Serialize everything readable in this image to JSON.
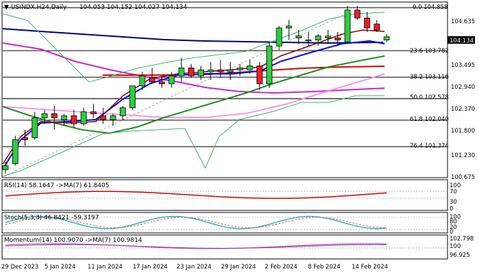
{
  "header": {
    "symbol": "USINDX.H24,Daily",
    "ohlc": "104.053 104.152 104.027 104.134"
  },
  "price_panel": {
    "current_price": "104.134",
    "axis_labels": [
      "104.635",
      "103.495",
      "102.940",
      "102.370",
      "101.800",
      "101.230",
      "100.675"
    ],
    "fib_levels": [
      {
        "label": "0.0 104.858",
        "value": 104.858
      },
      {
        "label": "23.6 103.782",
        "value": 103.782
      },
      {
        "label": "38.2 103.116",
        "value": 103.116
      },
      {
        "label": "50.0 102.578",
        "value": 102.578
      },
      {
        "label": "61.8 102.040",
        "value": 102.04
      },
      {
        "label": "76.4 101.374",
        "value": 101.374
      }
    ]
  },
  "rsi_panel": {
    "title": "RSI(14) 58.1647  ->MA(7) 61.8405",
    "axis_labels": [
      "100",
      "70",
      "30",
      "0"
    ]
  },
  "stoch_panel": {
    "title": "Stoch(5,3,3) 46.8421 -59.3197",
    "axis_labels": [
      "100",
      "80",
      "20",
      "0"
    ]
  },
  "momentum_panel": {
    "title": "Momentum(14) 100.9070  ->MA(7) 100.9814",
    "axis_labels": [
      "102.798",
      "100",
      "96.925"
    ]
  },
  "time_axis": [
    "29 Dec 2023",
    "5 Jan 2024",
    "11 Jan 2024",
    "17 Jan 2024",
    "23 Jan 2024",
    "29 Jan 2024",
    "2 Feb 2024",
    "8 Feb 2024",
    "14 Feb 2024"
  ],
  "colors": {
    "bull": "#2ecc40",
    "bear": "#e8202a",
    "blue_ma": "#0000ff",
    "darkred_ma": "#8b0000",
    "green_ma": "#228b22",
    "red_ma": "#dd0000",
    "magenta_ma": "#cc22cc",
    "pink_ma": "#ff88ee",
    "navy_ma": "#000080",
    "bollinger": "#3cb371",
    "rsi": "#cc0000",
    "stoch_main": "#20b2aa",
    "momentum": "#cc33cc"
  },
  "chart_data": {
    "type": "candlestick",
    "ylim": [
      100.6,
      105.0
    ],
    "candles": [
      [
        100.8,
        101.0,
        100.7,
        100.9
      ],
      [
        100.95,
        101.65,
        100.9,
        101.55
      ],
      [
        101.6,
        101.8,
        101.4,
        101.55
      ],
      [
        101.6,
        102.25,
        101.55,
        102.1
      ],
      [
        102.1,
        102.3,
        101.95,
        102.2
      ],
      [
        102.2,
        102.4,
        101.8,
        102.1
      ],
      [
        102.05,
        102.2,
        101.9,
        102.15
      ],
      [
        102.15,
        102.3,
        101.85,
        101.95
      ],
      [
        101.95,
        102.35,
        101.9,
        102.25
      ],
      [
        102.25,
        102.45,
        102.1,
        102.2
      ],
      [
        102.15,
        102.35,
        101.95,
        102.05
      ],
      [
        102.05,
        102.2,
        101.9,
        102.15
      ],
      [
        102.15,
        102.4,
        102.05,
        102.35
      ],
      [
        102.35,
        102.9,
        102.3,
        102.9
      ],
      [
        102.9,
        103.25,
        102.8,
        103.15
      ],
      [
        103.1,
        103.35,
        102.95,
        103.0
      ],
      [
        103.0,
        103.15,
        102.85,
        102.95
      ],
      [
        102.95,
        103.25,
        102.85,
        103.15
      ],
      [
        103.15,
        103.6,
        103.0,
        103.35
      ],
      [
        103.35,
        103.45,
        103.1,
        103.15
      ],
      [
        103.15,
        103.4,
        103.05,
        103.3
      ],
      [
        103.25,
        103.5,
        103.05,
        103.3
      ],
      [
        103.3,
        103.55,
        103.1,
        103.25
      ],
      [
        103.25,
        103.5,
        103.05,
        103.3
      ],
      [
        103.3,
        103.45,
        103.15,
        103.35
      ],
      [
        103.3,
        103.55,
        103.2,
        103.4
      ],
      [
        103.4,
        103.5,
        102.8,
        102.95
      ],
      [
        102.95,
        104.0,
        102.85,
        103.9
      ],
      [
        103.9,
        104.4,
        103.8,
        104.35
      ],
      [
        104.35,
        104.55,
        104.05,
        104.4
      ],
      [
        104.1,
        104.3,
        103.95,
        104.15
      ],
      [
        104.05,
        104.25,
        103.9,
        104.05
      ],
      [
        104.05,
        104.2,
        103.9,
        104.15
      ],
      [
        104.1,
        104.3,
        103.95,
        104.15
      ],
      [
        104.1,
        104.25,
        103.9,
        104.05
      ],
      [
        104.0,
        104.9,
        103.95,
        104.8
      ],
      [
        104.8,
        104.9,
        104.55,
        104.6
      ],
      [
        104.6,
        104.75,
        104.25,
        104.35
      ],
      [
        104.45,
        104.55,
        104.25,
        104.3
      ],
      [
        104.05,
        104.2,
        104.0,
        104.13
      ]
    ]
  }
}
